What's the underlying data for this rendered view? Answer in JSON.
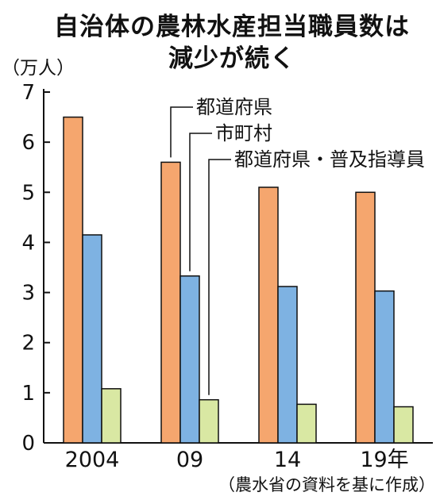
{
  "title_lines": [
    "自治体の農林水産担当職員数は",
    "減少が続く"
  ],
  "chart_data": {
    "type": "bar",
    "title": "自治体の農林水産担当職員数は減少が続く",
    "y_unit_label": "（万人）",
    "ylim": [
      0,
      7
    ],
    "yticks": [
      "0",
      "1",
      "2",
      "3",
      "4",
      "5",
      "6",
      "7"
    ],
    "categories": [
      "2004",
      "09",
      "14",
      "19年"
    ],
    "series": [
      {
        "name": "都道府県",
        "color": "#F5A66E",
        "values": [
          6.5,
          5.6,
          5.1,
          5.0
        ]
      },
      {
        "name": "市町村",
        "color": "#7EB2E2",
        "values": [
          4.15,
          3.33,
          3.12,
          3.03
        ]
      },
      {
        "name": "都道府県・普及指導員",
        "color": "#D9E8A3",
        "values": [
          1.08,
          0.86,
          0.77,
          0.72
        ]
      }
    ],
    "source": "（農水省の資料を基に作成）",
    "grid": false,
    "legend": "labels with leader lines, top-right"
  }
}
